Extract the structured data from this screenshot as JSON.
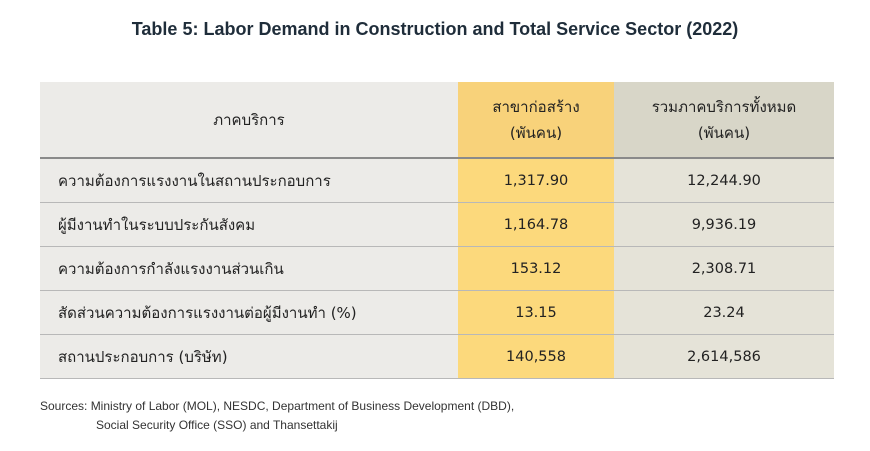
{
  "title": "Table 5: Labor Demand in Construction and Total Service Sector (2022)",
  "table": {
    "headers": {
      "col1": "ภาคบริการ",
      "col2_line1": "สาขาก่อสร้าง",
      "col2_line2": "(พันคน)",
      "col3_line1": "รวมภาคบริการทั้งหมด",
      "col3_line2": "(พันคน)"
    },
    "rows": [
      {
        "label": "ความต้องการแรงงานในสถานประกอบการ",
        "construction": "1,317.90",
        "total": "12,244.90"
      },
      {
        "label": "ผู้มีงานทำในระบบประกันสังคม",
        "construction": "1,164.78",
        "total": "9,936.19"
      },
      {
        "label": "ความต้องการกำลังแรงงานส่วนเกิน",
        "construction": "153.12",
        "total": "2,308.71"
      },
      {
        "label": "สัดส่วนความต้องการแรงงานต่อผู้มีงานทำ (%)",
        "construction": "13.15",
        "total": "23.24"
      },
      {
        "label": "สถานประกอบการ (บริษัท)",
        "construction": "140,558",
        "total": "2,614,586"
      }
    ]
  },
  "sources": {
    "line1": "Sources: Ministry of Labor (MOL), NESDC, Department of Business Development (DBD),",
    "line2": "Social Security Office (SSO) and Thansettakij"
  }
}
